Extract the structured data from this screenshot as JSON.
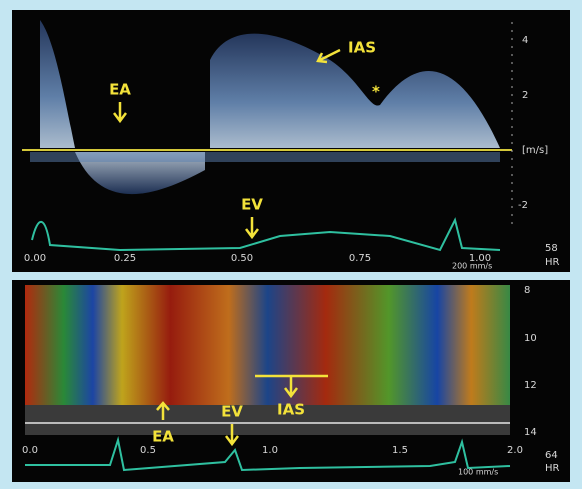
{
  "doppler_panel": {
    "annotations": {
      "ea": "EA",
      "ias": "IAS",
      "star": "*",
      "ev": "EV"
    },
    "velocity_axis": [
      "4",
      "2",
      "[m/s]",
      "-2"
    ],
    "time_axis": [
      "0.00",
      "0.25",
      "0.50",
      "0.75",
      "1.00"
    ],
    "sweep": "200 mm/s",
    "heart_rate": "58",
    "hr_label": "HR"
  },
  "mmode_panel": {
    "annotations": {
      "ea": "EA",
      "ev": "EV",
      "ias": "IAS"
    },
    "depth_axis": [
      "8",
      "10",
      "12",
      "14"
    ],
    "time_axis": [
      "0.0",
      "0.5",
      "1.0",
      "1.5",
      "2.0"
    ],
    "sweep": "100 mm/s",
    "heart_rate": "64",
    "hr_label": "HR"
  }
}
